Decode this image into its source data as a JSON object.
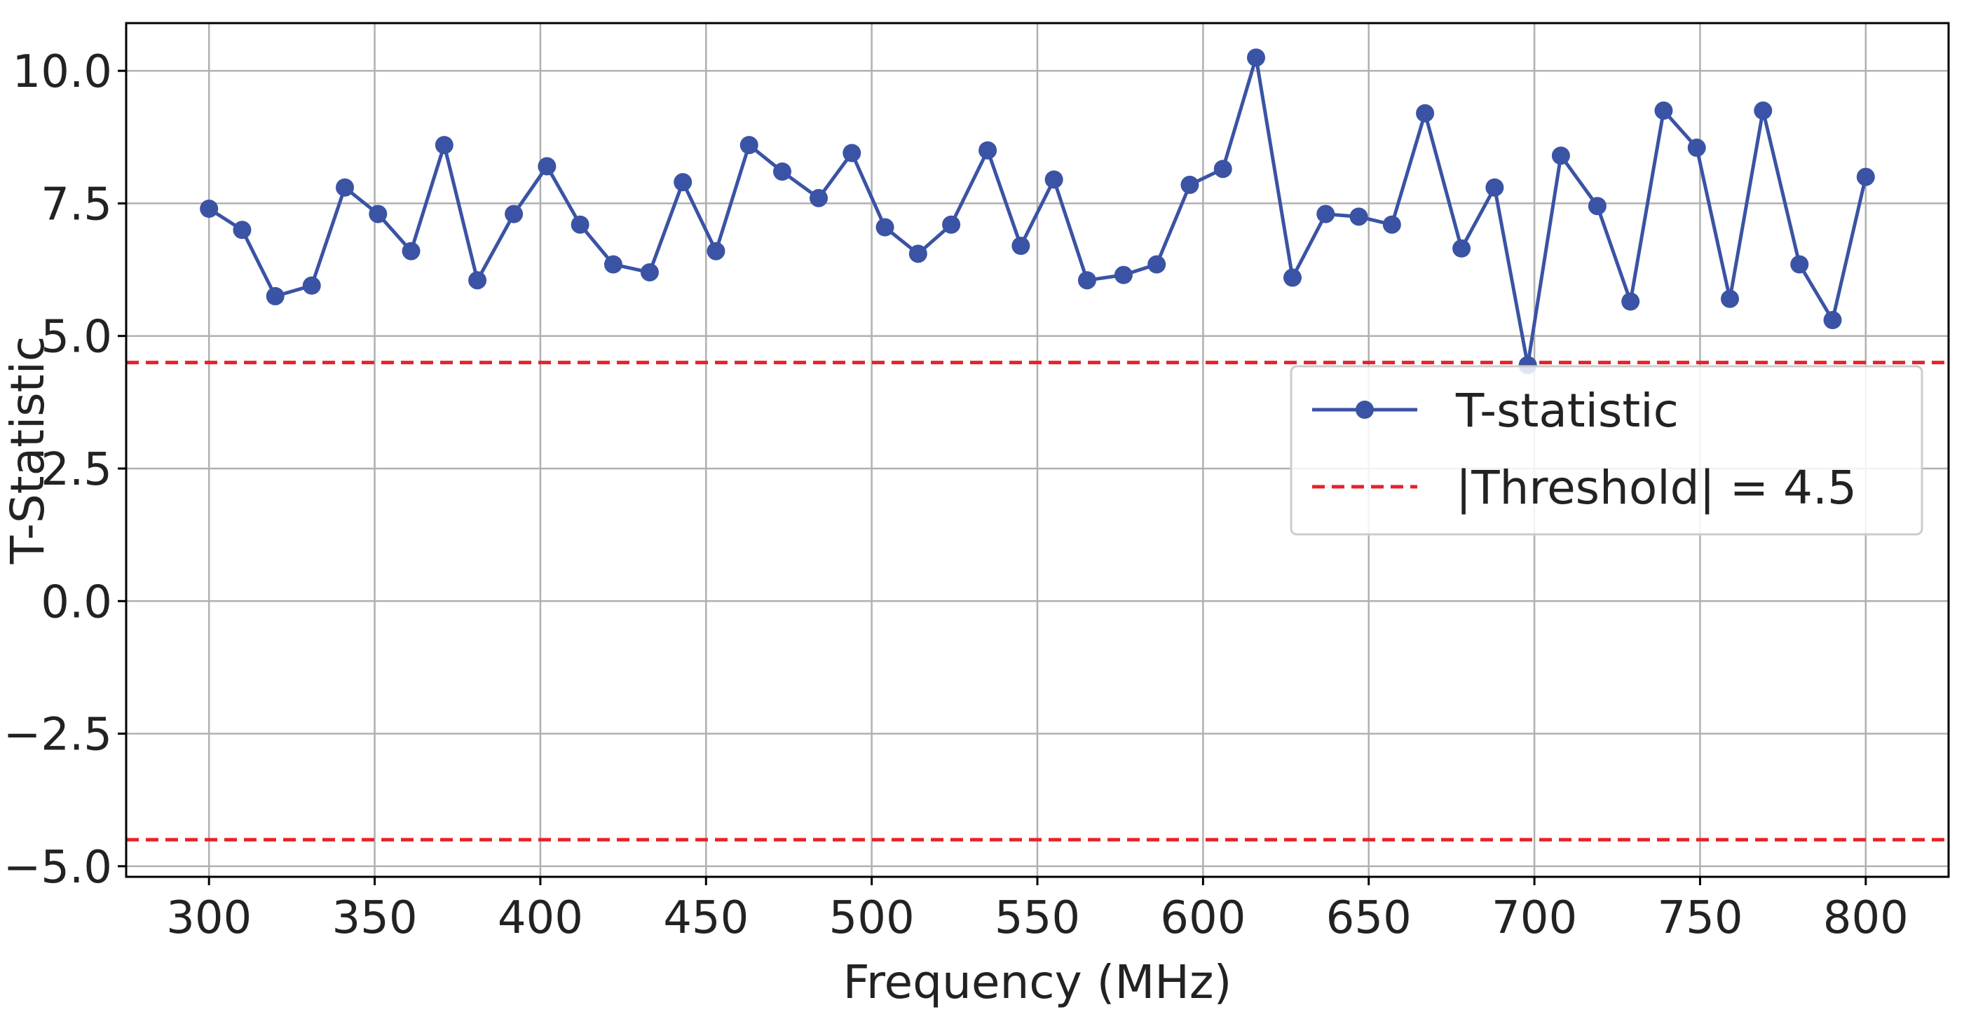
{
  "chart_data": {
    "type": "line",
    "xlabel": "Frequency (MHz)",
    "ylabel": "T-Statistic",
    "xlim": [
      275,
      825
    ],
    "ylim": [
      -5.2,
      10.9
    ],
    "xticks": [
      300,
      350,
      400,
      450,
      500,
      550,
      600,
      650,
      700,
      750,
      800
    ],
    "xtick_labels": [
      "300",
      "350",
      "400",
      "450",
      "500",
      "550",
      "600",
      "650",
      "700",
      "750",
      "800"
    ],
    "yticks": [
      -5.0,
      -2.5,
      0.0,
      2.5,
      5.0,
      7.5,
      10.0
    ],
    "ytick_labels": [
      "−5.0",
      "−2.5",
      "0.0",
      "2.5",
      "5.0",
      "7.5",
      "10.0"
    ],
    "grid": true,
    "legend_position": "center-right",
    "series": [
      {
        "name": "T-statistic",
        "color": "#3a53a4",
        "marker": "circle",
        "x": [
          300,
          310,
          320,
          331,
          341,
          351,
          361,
          371,
          381,
          392,
          402,
          412,
          422,
          433,
          443,
          453,
          463,
          473,
          484,
          494,
          504,
          514,
          524,
          535,
          545,
          555,
          565,
          576,
          586,
          596,
          606,
          616,
          627,
          637,
          647,
          657,
          667,
          678,
          688,
          698,
          708,
          719,
          729,
          739,
          749,
          759,
          769,
          780,
          790,
          800
        ],
        "y": [
          7.4,
          7.0,
          5.75,
          5.95,
          7.8,
          7.3,
          6.6,
          8.6,
          6.05,
          7.3,
          8.2,
          7.1,
          6.35,
          6.2,
          7.9,
          6.6,
          8.6,
          8.1,
          7.6,
          8.45,
          7.05,
          6.55,
          7.1,
          8.5,
          6.7,
          7.95,
          6.05,
          6.15,
          6.35,
          7.85,
          8.15,
          10.25,
          6.1,
          7.3,
          7.25,
          7.1,
          9.2,
          6.65,
          7.8,
          4.45,
          8.4,
          7.45,
          5.65,
          9.25,
          8.55,
          5.7,
          9.25,
          6.35,
          5.3,
          8.0
        ]
      },
      {
        "name": "|Threshold| = 4.5",
        "color": "#e8212a",
        "style": "dashed",
        "y_values": [
          4.5,
          -4.5
        ]
      }
    ]
  }
}
